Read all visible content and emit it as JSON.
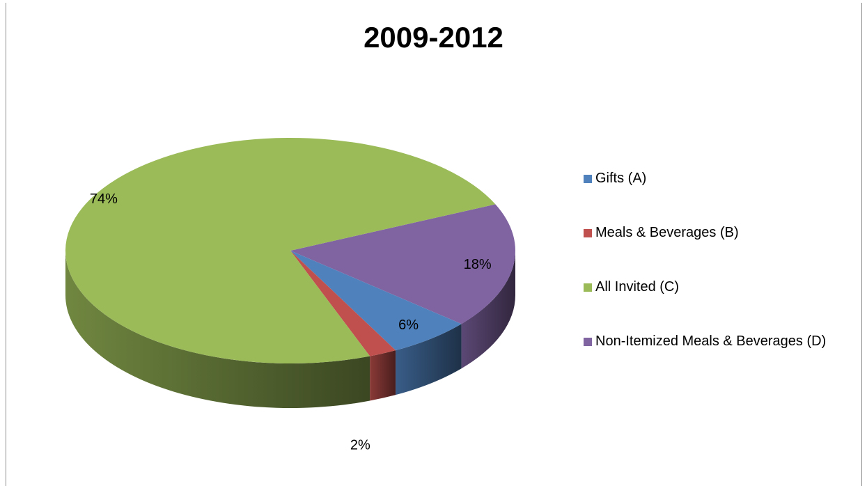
{
  "chart_data": {
    "type": "pie",
    "title": "2009-2012",
    "three_d": true,
    "categories": [
      "Gifts (A)",
      "Meals & Beverages (B)",
      "All Invited (C)",
      "Non-Itemized Meals & Beverages (D)"
    ],
    "values": [
      6,
      2,
      74,
      18
    ],
    "data_labels": [
      "6%",
      "2%",
      "74%",
      "18%"
    ],
    "colors": [
      "#4f81bd",
      "#c0504d",
      "#9bbb59",
      "#8064a2"
    ],
    "legend_position": "right"
  }
}
